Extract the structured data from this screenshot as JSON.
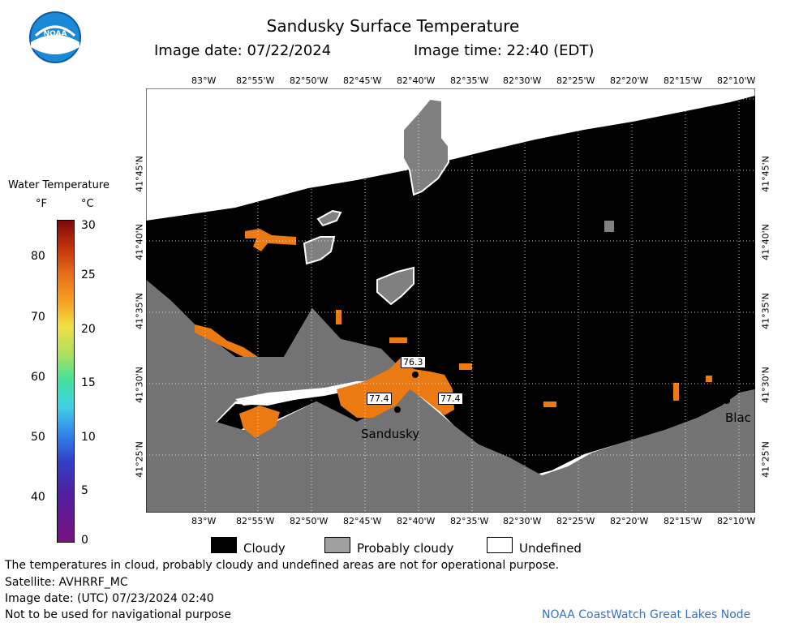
{
  "header": {
    "logo_text": "NOAA",
    "title": "Sandusky Surface Temperature",
    "image_date": "Image date: 07/22/2024",
    "image_time": "Image time: 22:40 (EDT)"
  },
  "colorbar": {
    "title": "Water Temperature",
    "unit_f": "°F",
    "unit_c": "°C",
    "f_ticks": [
      "80",
      "70",
      "60",
      "50",
      "40"
    ],
    "c_ticks": [
      "30",
      "25",
      "20",
      "15",
      "10",
      "5",
      "0"
    ]
  },
  "map": {
    "lon_labels": [
      "83°W",
      "82°55'W",
      "82°50'W",
      "82°45'W",
      "82°40'W",
      "82°35'W",
      "82°30'W",
      "82°25'W",
      "82°20'W",
      "82°15'W",
      "82°10'W"
    ],
    "lat_labels": [
      "41°45'N",
      "41°40'N",
      "41°35'N",
      "41°30'N",
      "41°25'N"
    ],
    "place_labels": {
      "sandusky": "Sandusky",
      "blac": "Blac"
    },
    "station_values": {
      "s1": "76.3",
      "s2": "77.4",
      "s3": "77.4"
    },
    "colors": {
      "cloudy": "#000000",
      "probably_cloudy": "#808080",
      "undefined": "#ffffff",
      "land": "#737373",
      "warm": "#ec7a12"
    }
  },
  "legend": {
    "cloudy": "Cloudy",
    "probably_cloudy": "Probably cloudy",
    "undefined": "Undefined"
  },
  "footer": {
    "disclaimer": "The temperatures in cloud, probably cloudy and undefined areas are not for operational purpose.",
    "satellite": "Satellite: AVHRRF_MC",
    "utc_date": "Image date: (UTC) 07/23/2024  02:40",
    "navigation": "Not to be used for navigational purpose",
    "credit": "NOAA CoastWatch Great Lakes Node"
  }
}
